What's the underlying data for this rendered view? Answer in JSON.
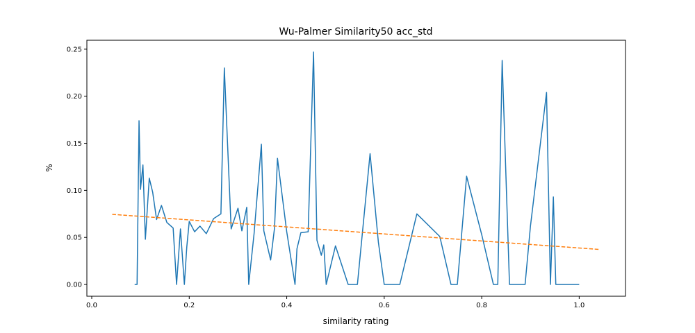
{
  "chart_data": {
    "type": "line",
    "title": "Wu-Palmer Similarity50 acc_std",
    "xlabel": "similarity rating",
    "ylabel": "%",
    "xlim": [
      -0.01,
      1.095
    ],
    "ylim": [
      -0.0125,
      0.2595
    ],
    "xticks": [
      0.0,
      0.2,
      0.4,
      0.6,
      0.8,
      1.0
    ],
    "xtick_labels": [
      "0.0",
      "0.2",
      "0.4",
      "0.6",
      "0.8",
      "1.0"
    ],
    "yticks": [
      0.0,
      0.05,
      0.1,
      0.15,
      0.2,
      0.25
    ],
    "ytick_labels": [
      "0.00",
      "0.05",
      "0.10",
      "0.15",
      "0.20",
      "0.25"
    ],
    "grid": false,
    "series": [
      {
        "color": "#1f77b4",
        "style": "solid",
        "x": [
          0.088,
          0.093,
          0.097,
          0.1,
          0.105,
          0.11,
          0.118,
          0.125,
          0.133,
          0.143,
          0.154,
          0.167,
          0.174,
          0.182,
          0.19,
          0.195,
          0.2,
          0.211,
          0.222,
          0.235,
          0.25,
          0.265,
          0.272,
          0.286,
          0.3,
          0.308,
          0.318,
          0.322,
          0.333,
          0.348,
          0.353,
          0.367,
          0.375,
          0.381,
          0.4,
          0.417,
          0.421,
          0.429,
          0.444,
          0.455,
          0.462,
          0.471,
          0.476,
          0.481,
          0.5,
          0.526,
          0.545,
          0.571,
          0.588,
          0.6,
          0.632,
          0.667,
          0.714,
          0.737,
          0.75,
          0.769,
          0.8,
          0.824,
          0.833,
          0.842,
          0.857,
          0.889,
          0.9,
          0.933,
          0.941,
          0.947,
          0.952,
          1.0
        ],
        "y": [
          0.0,
          0.0,
          0.174,
          0.101,
          0.127,
          0.048,
          0.113,
          0.098,
          0.069,
          0.084,
          0.066,
          0.06,
          0.0,
          0.059,
          0.0,
          0.04,
          0.067,
          0.056,
          0.062,
          0.054,
          0.07,
          0.075,
          0.23,
          0.059,
          0.081,
          0.057,
          0.082,
          0.0,
          0.054,
          0.149,
          0.057,
          0.026,
          0.06,
          0.134,
          0.056,
          0.0,
          0.038,
          0.055,
          0.056,
          0.247,
          0.047,
          0.031,
          0.042,
          0.0,
          0.041,
          0.0,
          0.0,
          0.139,
          0.045,
          0.0,
          0.0,
          0.075,
          0.051,
          0.0,
          0.0,
          0.115,
          0.053,
          0.0,
          0.0,
          0.238,
          0.0,
          0.0,
          0.062,
          0.204,
          0.0,
          0.093,
          0.0,
          0.0
        ]
      },
      {
        "color": "#ff7f0e",
        "style": "dashed",
        "x": [
          0.042,
          1.042
        ],
        "y": [
          0.0745,
          0.0372
        ]
      }
    ]
  }
}
